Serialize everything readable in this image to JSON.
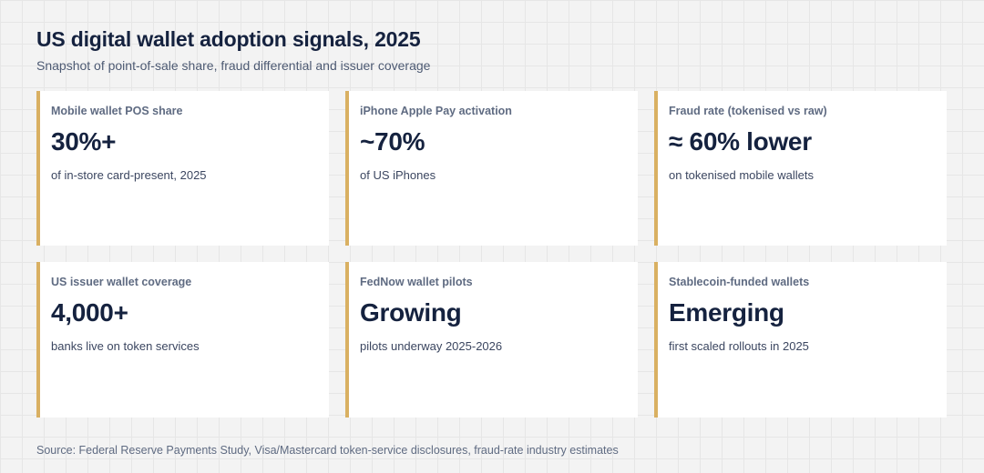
{
  "header": {
    "title": "US digital wallet adoption signals, 2025",
    "subtitle": "Snapshot of point-of-sale share, fraud differential and issuer coverage"
  },
  "colors": {
    "accent": "#d9b062",
    "title": "#15223f",
    "muted": "#5f6b82"
  },
  "cards": [
    {
      "label": "Mobile wallet POS share",
      "value": "30%+",
      "caption": "of in-store card-present, 2025"
    },
    {
      "label": "iPhone Apple Pay activation",
      "value": "~70%",
      "caption": "of US iPhones"
    },
    {
      "label": "Fraud rate (tokenised vs raw)",
      "value": "≈ 60% lower",
      "caption": "on tokenised mobile wallets"
    },
    {
      "label": "US issuer wallet coverage",
      "value": "4,000+",
      "caption": "banks live on token services"
    },
    {
      "label": "FedNow wallet pilots",
      "value": "Growing",
      "caption": "pilots underway 2025-2026"
    },
    {
      "label": "Stablecoin-funded wallets",
      "value": "Emerging",
      "caption": "first scaled rollouts in 2025"
    }
  ],
  "footer": {
    "source": "Source: Federal Reserve Payments Study, Visa/Mastercard token-service disclosures, fraud-rate industry estimates"
  }
}
